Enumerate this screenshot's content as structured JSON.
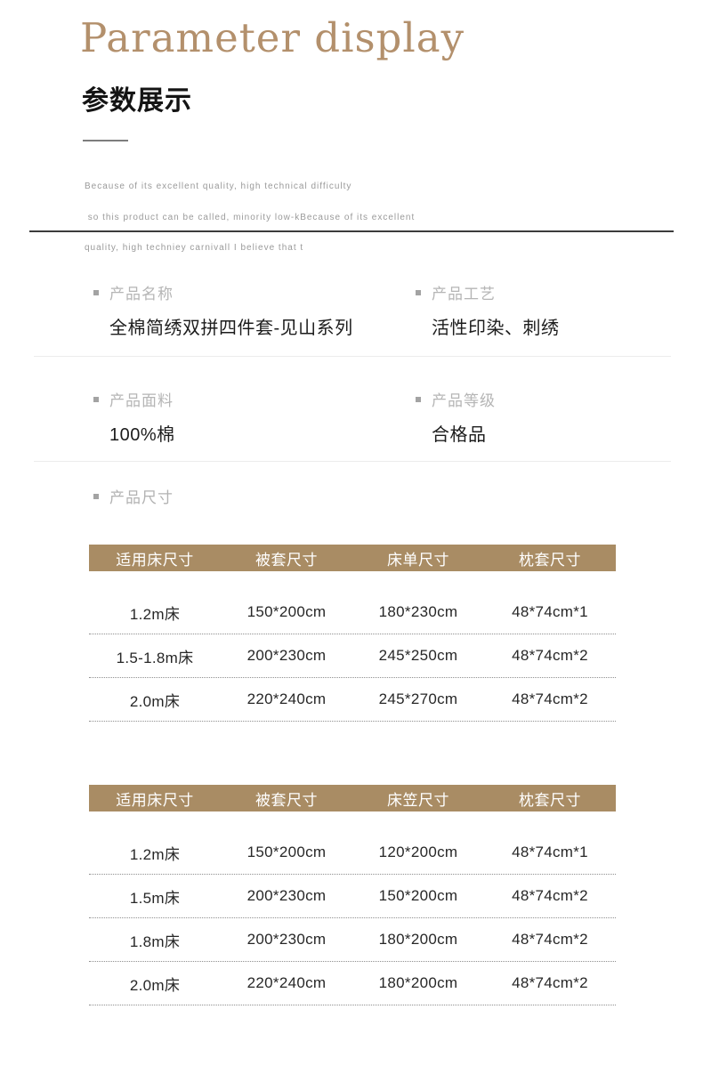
{
  "header": {
    "title_en": "Parameter display",
    "title_zh": "参数展示",
    "description_lines": [
      "Because of its excellent quality, high technical difficulty",
      " so this product can be called, minority low-kBecause of its excellent",
      "quality, high techniey carnivall I believe that t"
    ]
  },
  "info": {
    "items": [
      {
        "label": "产品名称",
        "value": "全棉简绣双拼四件套-见山系列"
      },
      {
        "label": "产品工艺",
        "value": "活性印染、刺绣"
      },
      {
        "label": "产品面料",
        "value": "100%棉"
      },
      {
        "label": "产品等级",
        "value": "合格品"
      }
    ],
    "size_section_label": "产品尺寸"
  },
  "colors": {
    "accent_title": "#b3906c",
    "table_header_bg": "#a98c64",
    "table_header_text": "#ffffff",
    "label_gray": "#b5b5b5",
    "value_black": "#1c1c1c",
    "dark_divider": "#3c3c3c",
    "light_divider": "#ececec",
    "dotted_line": "#8f8f8f"
  },
  "chart_data": [
    {
      "type": "table",
      "title": "产品尺寸 - 床单款",
      "headers": [
        "适用床尺寸",
        "被套尺寸",
        "床单尺寸",
        "枕套尺寸"
      ],
      "rows": [
        [
          "1.2m床",
          "150*200cm",
          "180*230cm",
          "48*74cm*1"
        ],
        [
          "1.5-1.8m床",
          "200*230cm",
          "245*250cm",
          "48*74cm*2"
        ],
        [
          "2.0m床",
          "220*240cm",
          "245*270cm",
          "48*74cm*2"
        ]
      ]
    },
    {
      "type": "table",
      "title": "产品尺寸 - 床笠款",
      "headers": [
        "适用床尺寸",
        "被套尺寸",
        "床笠尺寸",
        "枕套尺寸"
      ],
      "rows": [
        [
          "1.2m床",
          "150*200cm",
          "120*200cm",
          "48*74cm*1"
        ],
        [
          "1.5m床",
          "200*230cm",
          "150*200cm",
          "48*74cm*2"
        ],
        [
          "1.8m床",
          "200*230cm",
          "180*200cm",
          "48*74cm*2"
        ],
        [
          "2.0m床",
          "220*240cm",
          "180*200cm",
          "48*74cm*2"
        ]
      ]
    }
  ]
}
